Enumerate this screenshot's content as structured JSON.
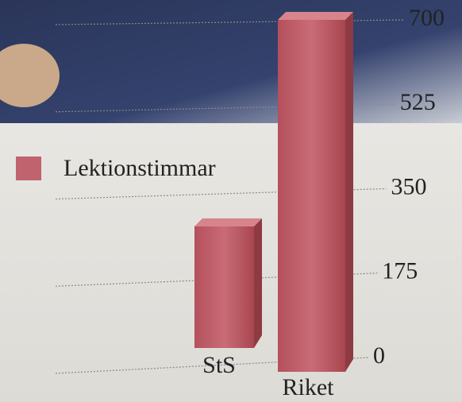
{
  "chart_data": {
    "type": "bar3d",
    "categories": [
      "StS",
      "Riket"
    ],
    "series": [
      {
        "name": "Lektionstimmar",
        "color": "#c0636e",
        "values": [
          272,
          700
        ]
      }
    ],
    "ylim": [
      0,
      700
    ],
    "yticks": [
      0,
      175,
      350,
      525,
      700
    ],
    "grid": true
  }
}
